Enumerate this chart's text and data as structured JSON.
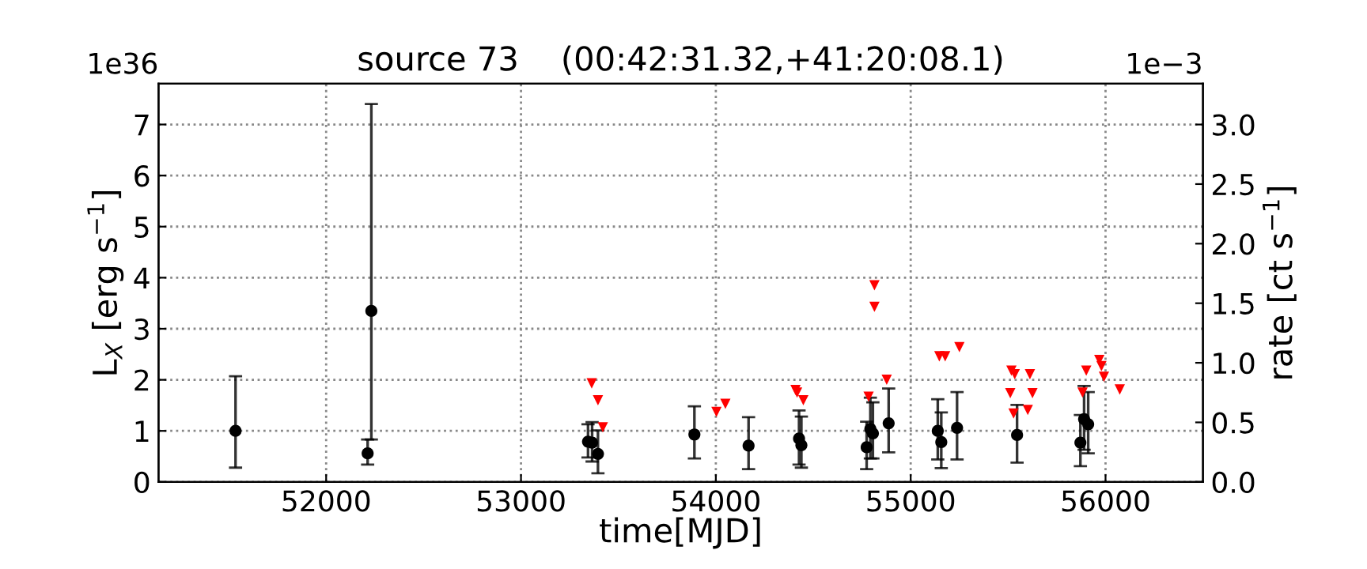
{
  "chart_data": {
    "type": "scatter",
    "title": "source 73    (00:42:31.32,+41:20:08.1)",
    "xlabel": "time[MJD]",
    "ylabel": "L$_{X}$ [erg s$^{−1}$]",
    "y2label": "rate [ct s$^{−1}$]",
    "annotations": [
      "1e36",
      "1e−3"
    ],
    "xlim": [
      51140,
      56500
    ],
    "xticks": [
      52000,
      53000,
      54000,
      55000,
      56000
    ],
    "ylim": [
      0,
      7.8
    ],
    "yticks": [
      0,
      1,
      2,
      3,
      4,
      5,
      6,
      7
    ],
    "y2lim": [
      0,
      3.343
    ],
    "y2ticks": [
      {
        "value": 0,
        "label": "0.0"
      },
      {
        "value": 0.5,
        "label": "0.5"
      },
      {
        "value": 1,
        "label": "1.0"
      },
      {
        "value": 1.5,
        "label": "1.5"
      },
      {
        "value": 2,
        "label": "2.0"
      },
      {
        "value": 2.5,
        "label": "2.5"
      },
      {
        "value": 3,
        "label": "3.0"
      }
    ],
    "grid": true,
    "legend": false,
    "series": [
      {
        "marker": "circle",
        "color": "#000000",
        "x": [
          51535,
          52213,
          52232,
          53344,
          53365,
          53395,
          53890,
          54168,
          54427,
          54439,
          54774,
          54793,
          54806,
          54887,
          55139,
          55157,
          55238,
          55546,
          55871,
          55890,
          55911
        ],
        "values": [
          1.0,
          0.56,
          3.35,
          0.79,
          0.77,
          0.55,
          0.93,
          0.71,
          0.85,
          0.72,
          0.68,
          1.04,
          0.95,
          1.15,
          1.0,
          0.78,
          1.06,
          0.92,
          0.77,
          1.23,
          1.13
        ],
        "errors": [
          [
            0.28,
            2.07
          ],
          [
            0.34,
            0.83
          ],
          [
            0.83,
            7.4
          ],
          [
            0.48,
            1.13
          ],
          [
            0.4,
            1.17
          ],
          [
            0.17,
            1.01
          ],
          [
            0.46,
            1.48
          ],
          [
            0.25,
            1.27
          ],
          [
            0.34,
            1.4
          ],
          [
            0.28,
            1.28
          ],
          [
            0.25,
            1.18
          ],
          [
            0.46,
            1.65
          ],
          [
            0.46,
            1.56
          ],
          [
            0.58,
            1.83
          ],
          [
            0.44,
            1.62
          ],
          [
            0.27,
            1.36
          ],
          [
            0.44,
            1.76
          ],
          [
            0.38,
            1.51
          ],
          [
            0.31,
            1.31
          ],
          [
            0.63,
            1.88
          ],
          [
            0.56,
            1.76
          ]
        ]
      },
      {
        "marker": "triangle",
        "color": "#ff0000",
        "x": [
          53363,
          53395,
          53420,
          54003,
          54049,
          54409,
          54417,
          54449,
          54784,
          54814,
          54814,
          54877,
          55147,
          55177,
          55250,
          55517,
          55534,
          55612,
          55511,
          55625,
          55528,
          55601,
          55882,
          55901,
          55968,
          55979,
          55992,
          56073
        ],
        "values": [
          1.93,
          1.6,
          1.07,
          1.37,
          1.53,
          1.8,
          1.75,
          1.6,
          1.67,
          3.85,
          3.43,
          2.0,
          2.46,
          2.46,
          2.64,
          2.18,
          2.11,
          2.11,
          1.74,
          1.74,
          1.34,
          1.41,
          1.75,
          2.18,
          2.39,
          2.27,
          2.06,
          1.81
        ]
      }
    ]
  }
}
